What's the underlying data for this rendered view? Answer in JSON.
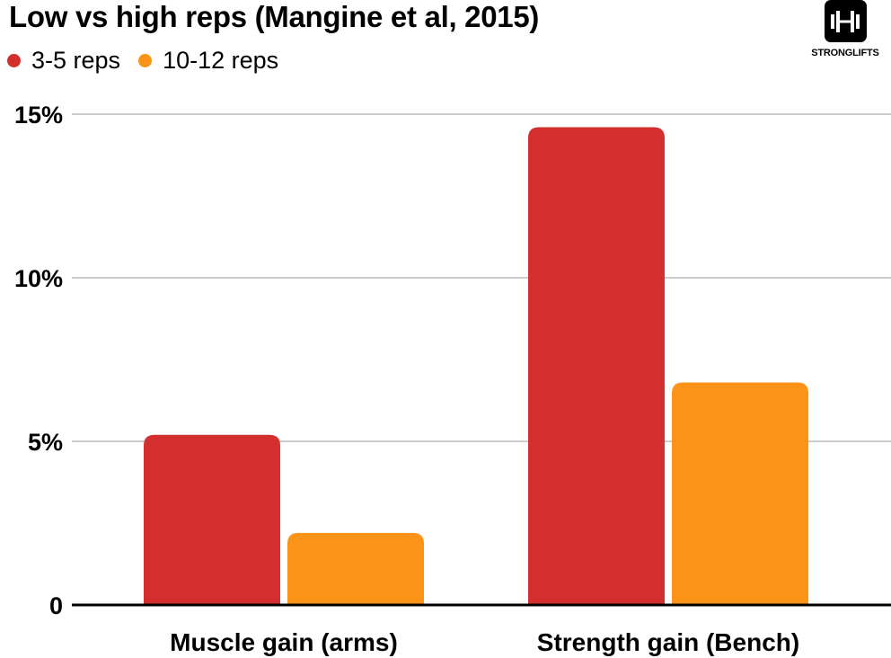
{
  "header": {
    "title": "Low vs high reps (Mangine et al, 2015)",
    "brand": "STRONGLIFTS"
  },
  "colors": {
    "series_1": "#d32f2f",
    "series_2": "#fb9318",
    "grid": "#cccccc",
    "axis": "#000000"
  },
  "chart_data": {
    "type": "bar",
    "title": "Low vs high reps (Mangine et al, 2015)",
    "categories": [
      "Muscle gain (arms)",
      "Strength gain (Bench)"
    ],
    "series": [
      {
        "name": "3-5 reps",
        "values": [
          5.2,
          14.6
        ]
      },
      {
        "name": "10-12 reps",
        "values": [
          2.2,
          6.8
        ]
      }
    ],
    "yticks": [
      {
        "value": 0,
        "label": "0"
      },
      {
        "value": 5,
        "label": "5%"
      },
      {
        "value": 10,
        "label": "10%"
      },
      {
        "value": 15,
        "label": "15%"
      }
    ],
    "ylim": [
      0,
      15
    ],
    "grid": true,
    "legend_position": "top-left"
  }
}
